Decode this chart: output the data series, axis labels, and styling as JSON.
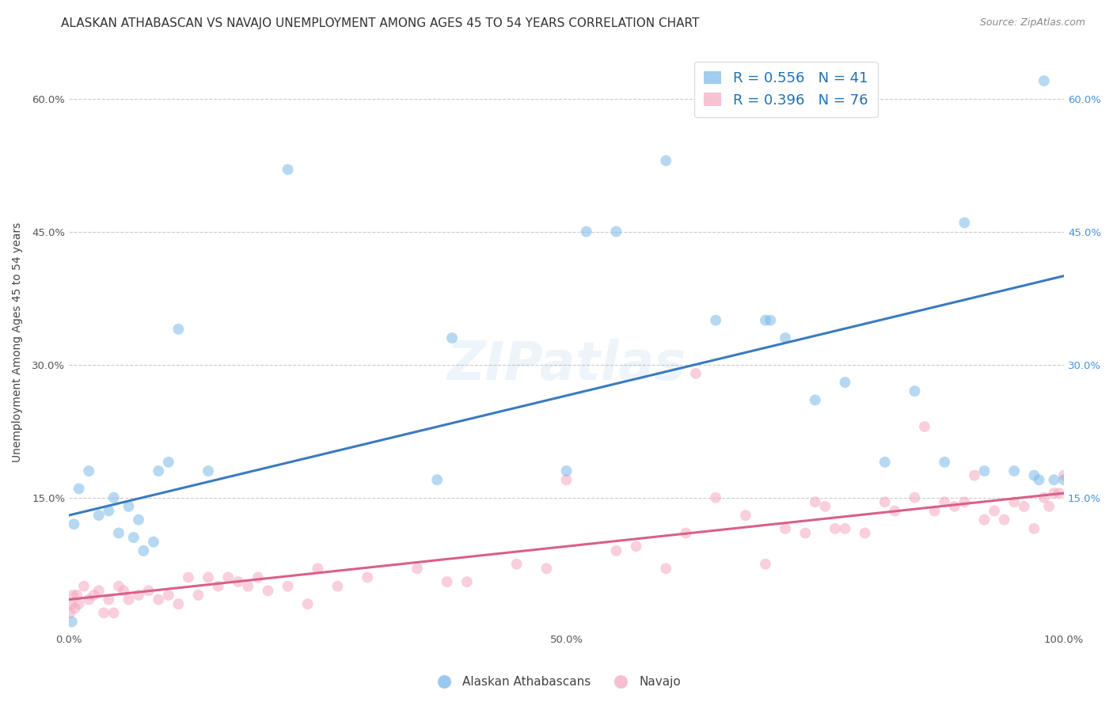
{
  "title": "ALASKAN ATHABASCAN VS NAVAJO UNEMPLOYMENT AMONG AGES 45 TO 54 YEARS CORRELATION CHART",
  "source": "Source: ZipAtlas.com",
  "ylabel": "Unemployment Among Ages 45 to 54 years",
  "xlabel": "",
  "background_color": "#ffffff",
  "grid_color": "#cccccc",
  "blue_color": "#7ab8e8",
  "pink_color": "#f4a8bf",
  "blue_line_color": "#3a7bbf",
  "pink_line_color": "#d96088",
  "legend_blue_r": "R = 0.556",
  "legend_blue_n": "N = 41",
  "legend_pink_r": "R = 0.396",
  "legend_pink_n": "N = 76",
  "watermark": "ZIPatlas",
  "blue_scatter_x": [
    0.3,
    0.5,
    1.0,
    2.0,
    3.0,
    4.0,
    4.5,
    5.0,
    6.0,
    6.5,
    7.0,
    7.5,
    8.5,
    9.0,
    10.0,
    11.0,
    14.0,
    22.0,
    37.0,
    38.5,
    50.0,
    52.0,
    55.0,
    60.0,
    65.0,
    70.0,
    70.5,
    72.0,
    75.0,
    78.0,
    82.0,
    85.0,
    88.0,
    90.0,
    92.0,
    95.0,
    97.0,
    97.5,
    98.0,
    99.0,
    100.0
  ],
  "blue_scatter_y": [
    1.0,
    12.0,
    16.0,
    18.0,
    13.0,
    13.5,
    15.0,
    11.0,
    14.0,
    10.5,
    12.5,
    9.0,
    10.0,
    18.0,
    19.0,
    34.0,
    18.0,
    52.0,
    17.0,
    33.0,
    18.0,
    45.0,
    45.0,
    53.0,
    35.0,
    35.0,
    35.0,
    33.0,
    26.0,
    28.0,
    19.0,
    27.0,
    19.0,
    46.0,
    18.0,
    18.0,
    17.5,
    17.0,
    62.0,
    17.0,
    17.0
  ],
  "pink_scatter_x": [
    0.1,
    0.2,
    0.4,
    0.6,
    0.8,
    1.0,
    1.5,
    2.0,
    2.5,
    3.0,
    3.5,
    4.0,
    4.5,
    5.0,
    5.5,
    6.0,
    7.0,
    8.0,
    9.0,
    10.0,
    11.0,
    12.0,
    13.0,
    14.0,
    15.0,
    16.0,
    17.0,
    18.0,
    19.0,
    20.0,
    22.0,
    24.0,
    25.0,
    27.0,
    30.0,
    35.0,
    38.0,
    40.0,
    45.0,
    48.0,
    50.0,
    55.0,
    57.0,
    60.0,
    62.0,
    63.0,
    65.0,
    68.0,
    70.0,
    72.0,
    74.0,
    75.0,
    76.0,
    77.0,
    78.0,
    80.0,
    82.0,
    83.0,
    85.0,
    86.0,
    87.0,
    88.0,
    89.0,
    90.0,
    91.0,
    92.0,
    93.0,
    94.0,
    95.0,
    96.0,
    97.0,
    98.0,
    98.5,
    99.0,
    99.5,
    100.0
  ],
  "pink_scatter_y": [
    2.0,
    3.0,
    4.0,
    2.5,
    4.0,
    3.0,
    5.0,
    3.5,
    4.0,
    4.5,
    2.0,
    3.5,
    2.0,
    5.0,
    4.5,
    3.5,
    4.0,
    4.5,
    3.5,
    4.0,
    3.0,
    6.0,
    4.0,
    6.0,
    5.0,
    6.0,
    5.5,
    5.0,
    6.0,
    4.5,
    5.0,
    3.0,
    7.0,
    5.0,
    6.0,
    7.0,
    5.5,
    5.5,
    7.5,
    7.0,
    17.0,
    9.0,
    9.5,
    7.0,
    11.0,
    29.0,
    15.0,
    13.0,
    7.5,
    11.5,
    11.0,
    14.5,
    14.0,
    11.5,
    11.5,
    11.0,
    14.5,
    13.5,
    15.0,
    23.0,
    13.5,
    14.5,
    14.0,
    14.5,
    17.5,
    12.5,
    13.5,
    12.5,
    14.5,
    14.0,
    11.5,
    15.0,
    14.0,
    15.5,
    15.5,
    17.5
  ],
  "xlim": [
    0,
    100
  ],
  "ylim": [
    0,
    65
  ],
  "xlim_pct": [
    0.0,
    1.0
  ],
  "ylim_pct": [
    0.0,
    0.65
  ],
  "xticks_pct": [
    0.0,
    0.25,
    0.5,
    0.75,
    1.0
  ],
  "xtick_labels": [
    "0.0%",
    "",
    "50.0%",
    "",
    "100.0%"
  ],
  "yticks_pct": [
    0.0,
    0.15,
    0.3,
    0.45,
    0.6
  ],
  "ytick_labels_left": [
    "",
    "15.0%",
    "30.0%",
    "45.0%",
    "60.0%"
  ],
  "ytick_labels_right": [
    "",
    "15.0%",
    "30.0%",
    "45.0%",
    "60.0%"
  ],
  "marker_size": 100,
  "marker_alpha": 0.55,
  "title_fontsize": 11,
  "axis_label_fontsize": 10,
  "tick_fontsize": 9.5,
  "legend_fontsize": 13,
  "source_fontsize": 9,
  "watermark_fontsize": 48,
  "watermark_alpha": 0.1,
  "watermark_color": "#5a9fd4",
  "blue_line_start_y": 13.0,
  "blue_line_end_y": 40.0,
  "pink_line_start_y": 3.5,
  "pink_line_end_y": 15.5
}
